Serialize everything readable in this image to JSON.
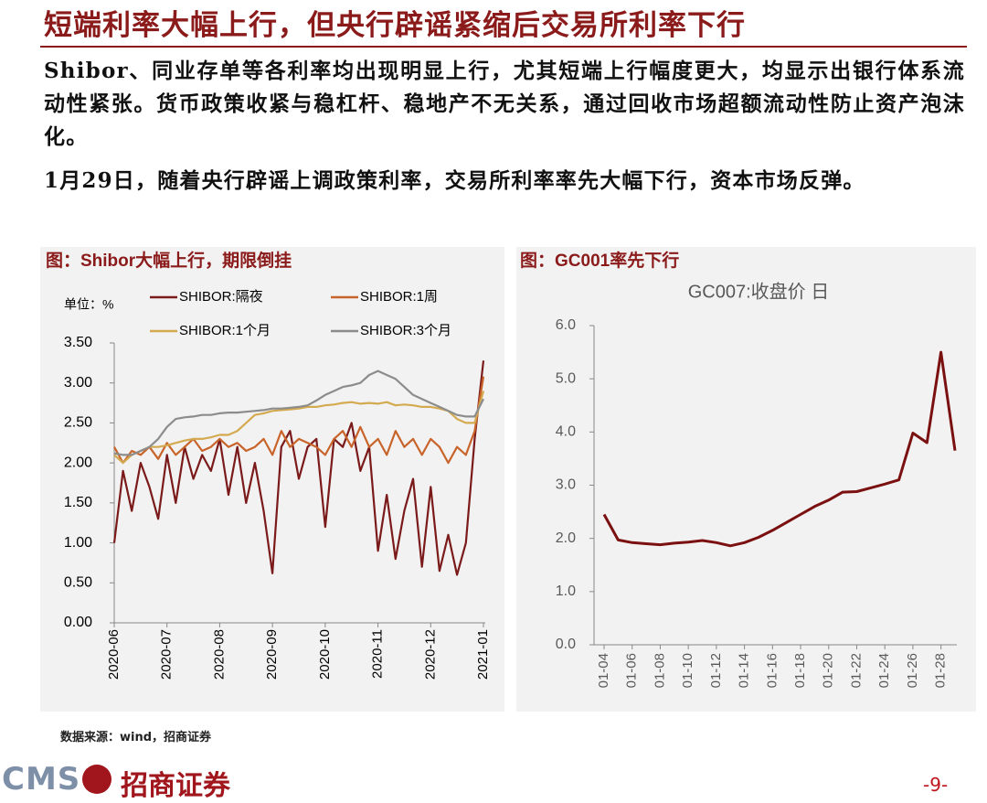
{
  "title": "短端利率大幅上行，但央行辟谣紧缩后交易所利率下行",
  "paragraphs": [
    "Shibor、同业存单等各利率均出现明显上行，尤其短端上行幅度更大，均显示出银行体系流动性紧张。货币政策收紧与稳杠杆、稳地产不无关系，通过回收市场超额流动性防止资产泡沫化。",
    "1月29日，随着央行辟谣上调政策利率，交易所利率率先大幅下行，资本市场反弹。"
  ],
  "chart_data": [
    {
      "type": "line",
      "title": "图：Shibor大幅上行，期限倒挂",
      "unit_label": "单位：%",
      "categories": [
        "2020-06",
        null,
        null,
        null,
        null,
        null,
        "2020-07",
        null,
        null,
        null,
        null,
        null,
        "2020-08",
        null,
        null,
        null,
        null,
        null,
        "2020-09",
        null,
        null,
        null,
        null,
        null,
        "2020-10",
        null,
        null,
        null,
        null,
        null,
        "2020-11",
        null,
        null,
        null,
        null,
        null,
        "2020-12",
        null,
        null,
        null,
        null,
        null,
        "2021-01"
      ],
      "series": [
        {
          "name": "SHIBOR:隔夜",
          "color": "#7b1a1a",
          "values": [
            1.0,
            1.9,
            1.4,
            2.0,
            1.7,
            1.3,
            2.1,
            1.5,
            2.2,
            1.8,
            2.1,
            1.9,
            2.3,
            1.6,
            2.2,
            1.5,
            2.0,
            1.4,
            0.62,
            2.2,
            2.4,
            1.8,
            2.2,
            2.3,
            1.2,
            2.3,
            2.2,
            2.5,
            1.9,
            2.2,
            0.9,
            1.6,
            0.8,
            1.4,
            1.8,
            0.7,
            1.7,
            0.65,
            1.1,
            0.6,
            1.0,
            2.3,
            3.28
          ]
        },
        {
          "name": "SHIBOR:1周",
          "color": "#c8642a",
          "values": [
            2.2,
            2.0,
            2.15,
            2.1,
            2.2,
            2.05,
            2.25,
            2.1,
            2.2,
            2.3,
            2.15,
            2.2,
            2.3,
            2.2,
            2.25,
            2.15,
            2.2,
            2.3,
            2.1,
            2.4,
            2.2,
            2.3,
            2.25,
            2.2,
            2.1,
            2.3,
            2.4,
            2.2,
            2.45,
            2.2,
            2.3,
            2.1,
            2.4,
            2.2,
            2.3,
            2.1,
            2.3,
            2.2,
            2.0,
            2.2,
            2.1,
            2.4,
            3.08
          ]
        },
        {
          "name": "SHIBOR:1个月",
          "color": "#d4aa50",
          "values": [
            2.1,
            2.0,
            2.1,
            2.15,
            2.2,
            2.2,
            2.22,
            2.25,
            2.28,
            2.3,
            2.3,
            2.32,
            2.35,
            2.35,
            2.4,
            2.5,
            2.6,
            2.62,
            2.65,
            2.66,
            2.67,
            2.68,
            2.7,
            2.7,
            2.72,
            2.73,
            2.75,
            2.76,
            2.74,
            2.75,
            2.74,
            2.76,
            2.72,
            2.73,
            2.72,
            2.7,
            2.7,
            2.68,
            2.65,
            2.55,
            2.5,
            2.5,
            2.9
          ]
        },
        {
          "name": "SHIBOR:3个月",
          "color": "#8c8c8c",
          "values": [
            2.12,
            2.1,
            2.1,
            2.15,
            2.2,
            2.3,
            2.45,
            2.55,
            2.57,
            2.58,
            2.6,
            2.6,
            2.62,
            2.63,
            2.63,
            2.64,
            2.65,
            2.66,
            2.68,
            2.68,
            2.69,
            2.7,
            2.72,
            2.78,
            2.85,
            2.9,
            2.95,
            2.97,
            3.0,
            3.1,
            3.15,
            3.1,
            3.05,
            2.95,
            2.85,
            2.8,
            2.75,
            2.7,
            2.65,
            2.6,
            2.58,
            2.58,
            2.8
          ]
        }
      ],
      "ylim": [
        0,
        3.5
      ],
      "yticks": [
        {
          "value": 0,
          "label": "0.00"
        },
        {
          "value": 0.5,
          "label": "0.50"
        },
        {
          "value": 1,
          "label": "1.00"
        },
        {
          "value": 1.5,
          "label": "1.50"
        },
        {
          "value": 2,
          "label": "2.00"
        },
        {
          "value": 2.5,
          "label": "2.50"
        },
        {
          "value": 3,
          "label": "3.00"
        },
        {
          "value": 3.5,
          "label": "3.50"
        }
      ],
      "grid": false
    },
    {
      "type": "line",
      "title": "图：GC001率先下行",
      "subtitle": "GC007:收盘价 日",
      "categories": [
        "01-04",
        null,
        "01-06",
        null,
        "01-08",
        null,
        "01-10",
        null,
        "01-12",
        null,
        "01-14",
        null,
        "01-16",
        null,
        "01-18",
        null,
        "01-20",
        null,
        "01-22",
        null,
        "01-24",
        null,
        "01-26",
        null,
        "01-28",
        null
      ],
      "values": [
        2.45,
        1.97,
        1.92,
        1.9,
        1.88,
        1.91,
        1.93,
        1.96,
        1.92,
        1.86,
        1.92,
        2.02,
        2.15,
        2.3,
        2.45,
        2.6,
        2.72,
        2.87,
        2.88,
        2.95,
        3.02,
        3.1,
        3.98,
        3.8,
        5.5,
        3.65
      ],
      "color": "#7b1010",
      "ylim": [
        0,
        6
      ],
      "yticks": [
        {
          "value": 0,
          "label": "0.0"
        },
        {
          "value": 1,
          "label": "1.0"
        },
        {
          "value": 2,
          "label": "2.0"
        },
        {
          "value": 3,
          "label": "3.0"
        },
        {
          "value": 4,
          "label": "4.0"
        },
        {
          "value": 5,
          "label": "5.0"
        },
        {
          "value": 6,
          "label": "6.0"
        }
      ],
      "grid": false
    }
  ],
  "source": "数据来源：wind，招商证券",
  "footer": {
    "logo": "CMS",
    "brand": "招商证券",
    "page": "-9-"
  }
}
